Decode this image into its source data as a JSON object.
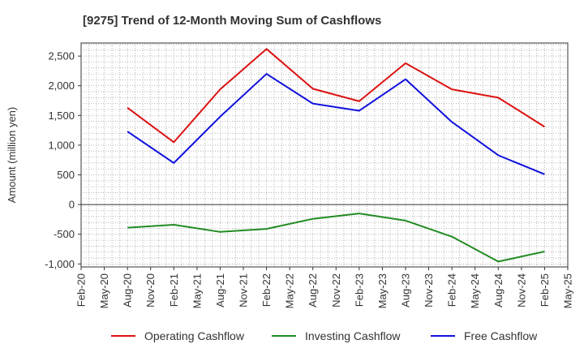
{
  "chart_data": {
    "type": "line",
    "title": "[9275]  Trend of 12-Month Moving Sum of Cashflows",
    "ylabel": "Amount (million yen)",
    "xlabel": "",
    "x_ticks": [
      "Feb-20",
      "May-20",
      "Aug-20",
      "Nov-20",
      "Feb-21",
      "May-21",
      "Aug-21",
      "Nov-21",
      "Feb-22",
      "May-22",
      "Aug-22",
      "Nov-22",
      "Feb-23",
      "May-23",
      "Aug-23",
      "Nov-23",
      "Feb-24",
      "May-24",
      "Aug-24",
      "Nov-24",
      "Feb-25",
      "May-25"
    ],
    "y_ticks": [
      -1000,
      -500,
      0,
      500,
      1000,
      1500,
      2000,
      2500
    ],
    "y_tick_labels": [
      "-1,000",
      "-500",
      "0",
      "500",
      "1,000",
      "1,500",
      "2,000",
      "2,500"
    ],
    "ylim": [
      -1050,
      2720
    ],
    "grid": true,
    "legend_position": "bottom",
    "x": [
      "Aug-20",
      "Feb-21",
      "Aug-21",
      "Feb-22",
      "Aug-22",
      "Feb-23",
      "Aug-23",
      "Feb-24",
      "Aug-24",
      "Feb-25"
    ],
    "series": [
      {
        "name": "Operating Cashflow",
        "color": "#dd1111",
        "values": [
          1630,
          1050,
          1940,
          2620,
          1950,
          1740,
          2380,
          1940,
          1800,
          1310
        ]
      },
      {
        "name": "Investing Cashflow",
        "color": "#228b22",
        "values": [
          -390,
          -340,
          -460,
          -410,
          -240,
          -150,
          -270,
          -540,
          -960,
          -790
        ]
      },
      {
        "name": "Free Cashflow",
        "color": "#1111dd",
        "values": [
          1230,
          700,
          1480,
          2200,
          1700,
          1580,
          2110,
          1390,
          830,
          510
        ]
      }
    ]
  }
}
